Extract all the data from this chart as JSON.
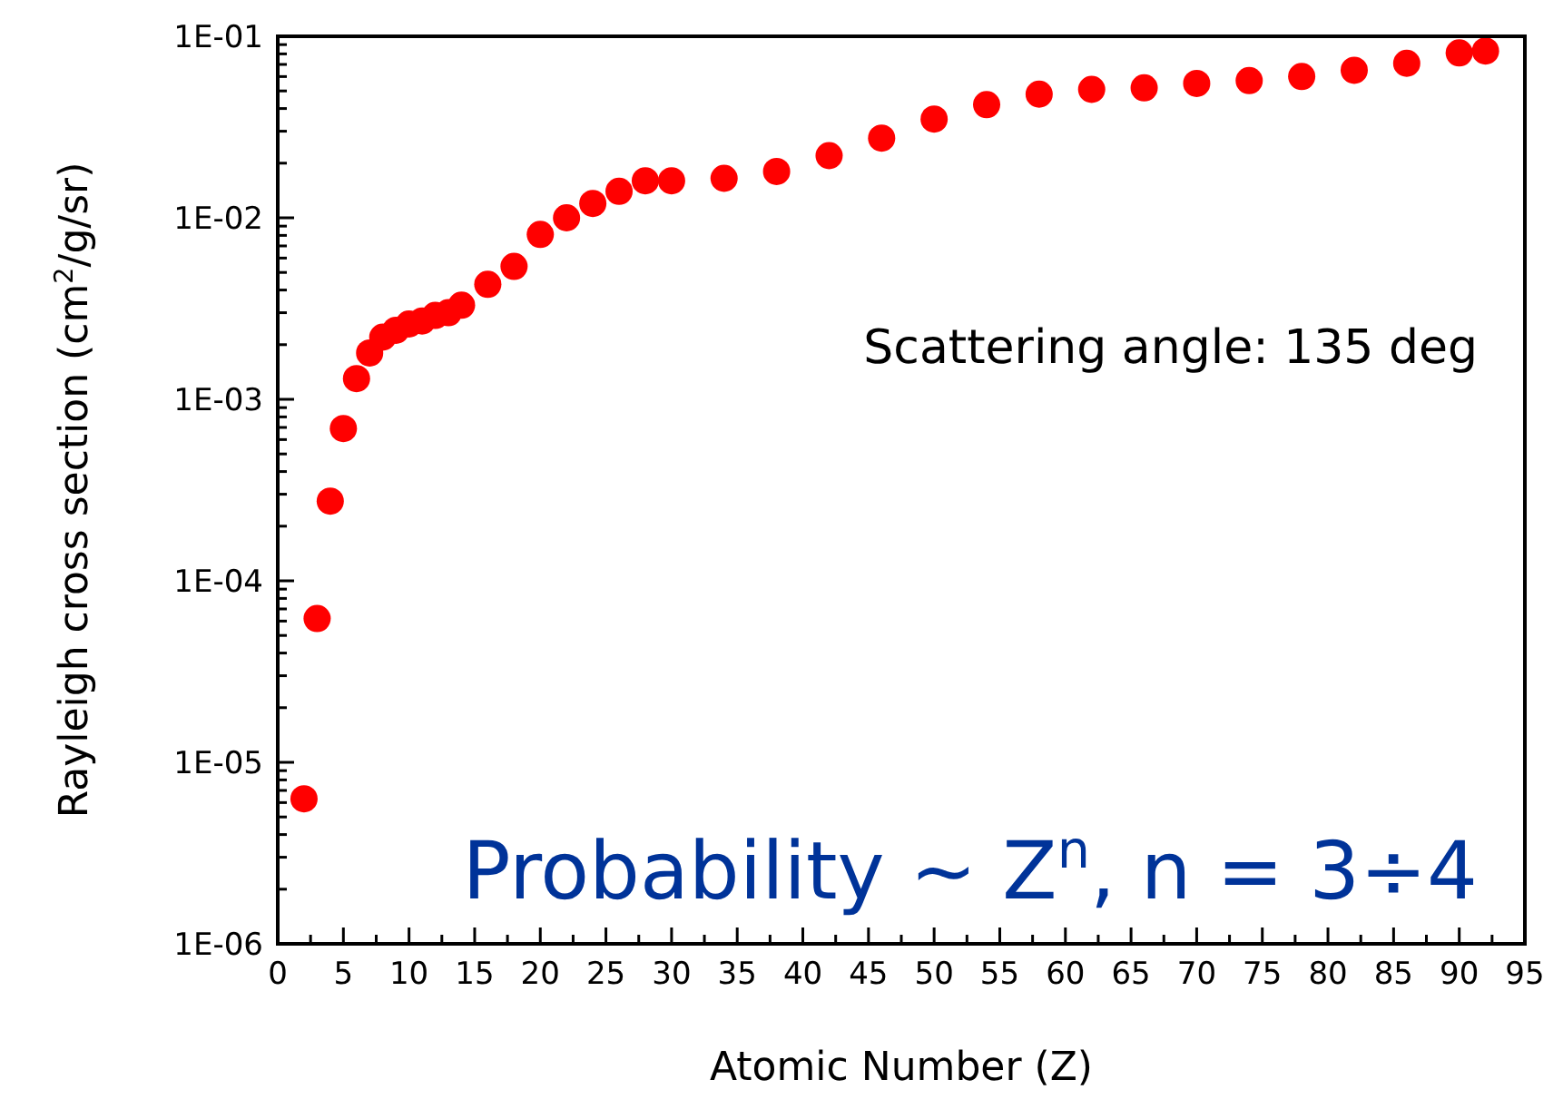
{
  "chart_data": {
    "type": "scatter",
    "xlabel": "Atomic Number (Z)",
    "ylabel": "Rayleigh cross section (cm$^{2}$/g/sr)",
    "log": "y",
    "grid": false,
    "marker": "circle",
    "x": [
      2,
      3,
      4,
      5,
      6,
      7,
      8,
      9,
      10,
      11,
      12,
      13,
      14,
      16,
      18,
      20,
      22,
      24,
      26,
      28,
      30,
      34,
      38,
      42,
      46,
      50,
      54,
      58,
      62,
      66,
      70,
      74,
      78,
      82,
      86,
      90,
      92
    ],
    "series": [
      {
        "color": "#ff0000",
        "values": [
          6.3e-06,
          6.2e-05,
          0.000275,
          0.00069,
          0.0013,
          0.0018,
          0.0022,
          0.0024,
          0.0026,
          0.0027,
          0.0029,
          0.003,
          0.0033,
          0.0043,
          0.0054,
          0.0081,
          0.01,
          0.012,
          0.014,
          0.016,
          0.016,
          0.0165,
          0.018,
          0.022,
          0.0275,
          0.035,
          0.042,
          0.048,
          0.051,
          0.052,
          0.055,
          0.057,
          0.06,
          0.065,
          0.071,
          0.081,
          0.083
        ]
      }
    ],
    "xlim": [
      0,
      95
    ],
    "xticks": [
      0,
      {
        "value": 2.5,
        "label": null
      },
      5,
      {
        "value": 7.5,
        "label": null
      },
      10,
      {
        "value": 12.5,
        "label": null
      },
      15,
      {
        "value": 17.5,
        "label": null
      },
      20,
      {
        "value": 22.5,
        "label": null
      },
      25,
      {
        "value": 27.5,
        "label": null
      },
      30,
      {
        "value": 32.5,
        "label": null
      },
      35,
      {
        "value": 37.5,
        "label": null
      },
      40,
      {
        "value": 42.5,
        "label": null
      },
      45,
      {
        "value": 47.5,
        "label": null
      },
      50,
      {
        "value": 52.5,
        "label": null
      },
      55,
      {
        "value": 57.5,
        "label": null
      },
      60,
      {
        "value": 62.5,
        "label": null
      },
      65,
      {
        "value": 67.5,
        "label": null
      },
      70,
      {
        "value": 72.5,
        "label": null
      },
      75,
      {
        "value": 77.5,
        "label": null
      },
      80,
      {
        "value": 82.5,
        "label": null
      },
      85,
      {
        "value": 87.5,
        "label": null
      },
      90,
      {
        "value": 92.5,
        "label": null
      },
      95
    ],
    "ylim": [
      1e-06,
      0.1
    ],
    "yticks": [
      {
        "value": 1e-06,
        "label": "1E-06"
      },
      {
        "value": 2e-06,
        "label": null
      },
      {
        "value": 3e-06,
        "label": null
      },
      {
        "value": 4e-06,
        "label": null
      },
      {
        "value": 5e-06,
        "label": null
      },
      {
        "value": 6e-06,
        "label": null
      },
      {
        "value": 7e-06,
        "label": null
      },
      {
        "value": 8e-06,
        "label": null
      },
      {
        "value": 9e-06,
        "label": null
      },
      {
        "value": 1e-05,
        "label": "1E-05"
      },
      {
        "value": 2e-05,
        "label": null
      },
      {
        "value": 3e-05,
        "label": null
      },
      {
        "value": 4e-05,
        "label": null
      },
      {
        "value": 5e-05,
        "label": null
      },
      {
        "value": 6e-05,
        "label": null
      },
      {
        "value": 7e-05,
        "label": null
      },
      {
        "value": 8e-05,
        "label": null
      },
      {
        "value": 9e-05,
        "label": null
      },
      {
        "value": 0.0001,
        "label": "1E-04"
      },
      {
        "value": 0.0002,
        "label": null
      },
      {
        "value": 0.0003,
        "label": null
      },
      {
        "value": 0.0004,
        "label": null
      },
      {
        "value": 0.0005,
        "label": null
      },
      {
        "value": 0.0006,
        "label": null
      },
      {
        "value": 0.0007,
        "label": null
      },
      {
        "value": 0.0008,
        "label": null
      },
      {
        "value": 0.0009,
        "label": null
      },
      {
        "value": 0.001,
        "label": "1E-03"
      },
      {
        "value": 0.002,
        "label": null
      },
      {
        "value": 0.003,
        "label": null
      },
      {
        "value": 0.004,
        "label": null
      },
      {
        "value": 0.005,
        "label": null
      },
      {
        "value": 0.006,
        "label": null
      },
      {
        "value": 0.007,
        "label": null
      },
      {
        "value": 0.008,
        "label": null
      },
      {
        "value": 0.009,
        "label": null
      },
      {
        "value": 0.01,
        "label": "1E-02"
      },
      {
        "value": 0.02,
        "label": null
      },
      {
        "value": 0.03,
        "label": null
      },
      {
        "value": 0.04,
        "label": null
      },
      {
        "value": 0.05,
        "label": null
      },
      {
        "value": 0.06,
        "label": null
      },
      {
        "value": 0.07,
        "label": null
      },
      {
        "value": 0.08,
        "label": null
      },
      {
        "value": 0.09,
        "label": null
      },
      {
        "value": 0.1,
        "label": "1E-01"
      }
    ],
    "annotations": [
      "Scattering angle: 135 deg",
      "Probability ~ Z$^{n}$, n = 3÷4"
    ]
  }
}
